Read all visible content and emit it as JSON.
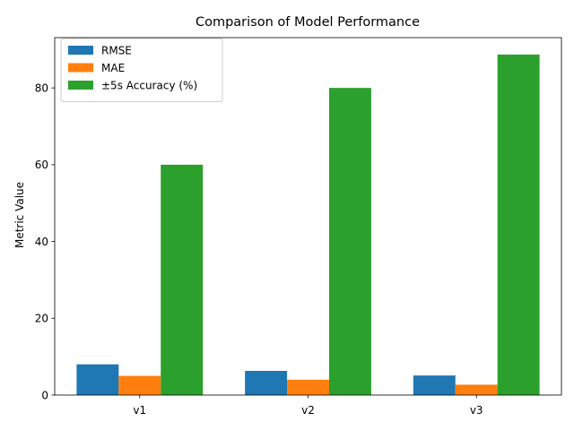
{
  "chart_data": {
    "type": "bar",
    "title": "Comparison of Model Performance",
    "xlabel": "",
    "ylabel": "Metric Value",
    "categories": [
      "v1",
      "v2",
      "v3"
    ],
    "series": [
      {
        "name": "RMSE",
        "values": [
          8.0,
          6.3,
          5.1
        ],
        "color": "#1f77b4"
      },
      {
        "name": "MAE",
        "values": [
          5.0,
          4.0,
          2.7
        ],
        "color": "#ff7f0e"
      },
      {
        "name": "±5s Accuracy (%)",
        "values": [
          60.0,
          80.0,
          88.7
        ],
        "color": "#2ca02c"
      }
    ],
    "ylim": [
      0,
      93.1
    ],
    "yticks": [
      0,
      20,
      40,
      60,
      80
    ],
    "grid": false,
    "legend": "top-left"
  }
}
